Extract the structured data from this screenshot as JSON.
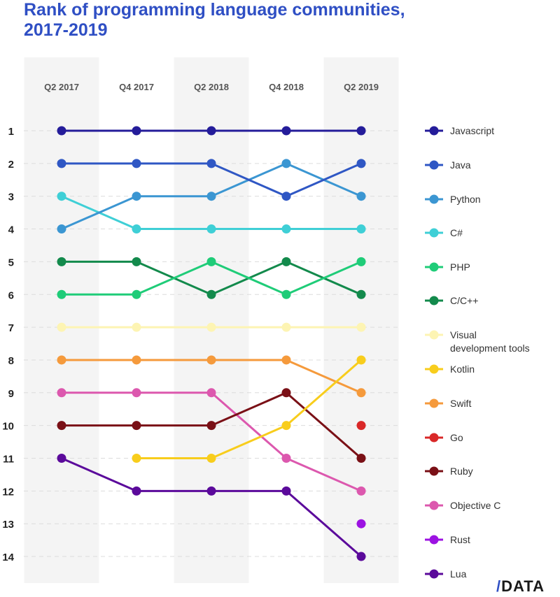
{
  "brand": {
    "slash": "/",
    "text": "DATA"
  },
  "chart_data": {
    "type": "line",
    "title": "Rank of programming language communities, 2017-2019",
    "x": [
      "Q2 2017",
      "Q4 2017",
      "Q2 2018",
      "Q4 2018",
      "Q2 2019"
    ],
    "ylim": [
      1,
      14
    ],
    "y_reversed": true,
    "yticks": [
      "1",
      "2",
      "3",
      "4",
      "5",
      "6",
      "7",
      "8",
      "9",
      "10",
      "11",
      "12",
      "13",
      "14"
    ],
    "series": [
      {
        "name": "Javascript",
        "color": "#241c9a",
        "values": [
          1,
          1,
          1,
          1,
          1
        ]
      },
      {
        "name": "Java",
        "color": "#2f57c4",
        "values": [
          2,
          2,
          2,
          3,
          2
        ]
      },
      {
        "name": "Python",
        "color": "#3b96d2",
        "values": [
          4,
          3,
          3,
          2,
          3
        ]
      },
      {
        "name": "C#",
        "color": "#3fcfd6",
        "values": [
          3,
          4,
          4,
          4,
          4
        ]
      },
      {
        "name": "PHP",
        "color": "#1fcc78",
        "values": [
          6,
          6,
          5,
          6,
          5
        ]
      },
      {
        "name": "C/C++",
        "color": "#138a4c",
        "values": [
          5,
          5,
          6,
          5,
          6
        ]
      },
      {
        "name": [
          "Visual",
          "development tools"
        ],
        "color": "#fdf4b3",
        "values": [
          7,
          7,
          7,
          7,
          7
        ]
      },
      {
        "name": "Kotlin",
        "color": "#f8cd1c",
        "values": [
          null,
          11,
          11,
          10,
          8
        ]
      },
      {
        "name": "Swift",
        "color": "#f59a3c",
        "values": [
          8,
          8,
          8,
          8,
          9
        ]
      },
      {
        "name": "Go",
        "color": "#d92828",
        "values": [
          null,
          null,
          null,
          null,
          10
        ]
      },
      {
        "name": "Ruby",
        "color": "#7a1016",
        "values": [
          10,
          10,
          10,
          9,
          11
        ]
      },
      {
        "name": "Objective C",
        "color": "#dc58ae",
        "values": [
          9,
          9,
          9,
          11,
          12
        ]
      },
      {
        "name": "Rust",
        "color": "#9c12e2",
        "values": [
          null,
          null,
          null,
          null,
          13
        ]
      },
      {
        "name": "Lua",
        "color": "#5b0a9b",
        "values": [
          11,
          12,
          12,
          12,
          14
        ]
      }
    ]
  }
}
